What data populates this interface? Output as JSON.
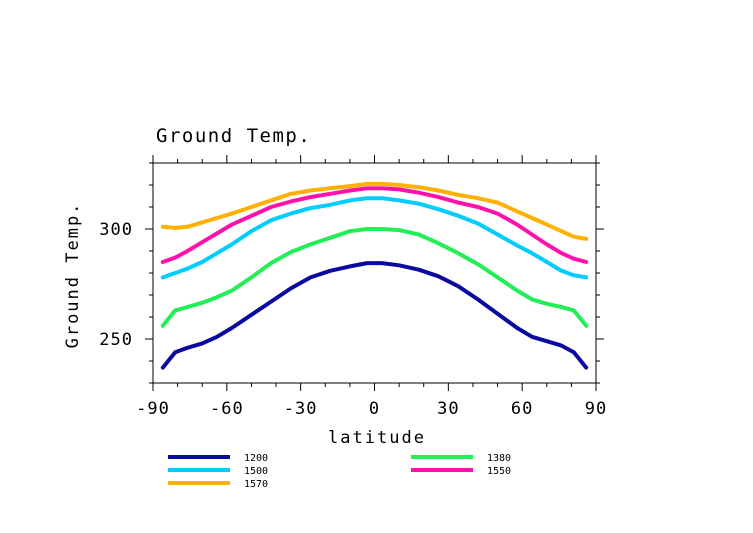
{
  "chart_data": {
    "type": "line",
    "title": "Ground Temp.",
    "xlabel": "latitude",
    "ylabel": "Ground Temp.",
    "xlim": [
      -90,
      90
    ],
    "ylim": [
      230,
      330
    ],
    "xticks": [
      -90,
      -60,
      -30,
      0,
      30,
      60,
      90
    ],
    "yticks": [
      250,
      300
    ],
    "grid": false,
    "legend_position": "bottom",
    "x": [
      -86,
      -81,
      -76,
      -70,
      -64,
      -58,
      -50,
      -42,
      -34,
      -26,
      -18,
      -10,
      -3,
      3,
      10,
      18,
      26,
      34,
      42,
      50,
      58,
      64,
      70,
      76,
      81,
      86
    ],
    "series": [
      {
        "name": "1200",
        "color": "#0a0aa0",
        "values": [
          237,
          244,
          246,
          248,
          251,
          255,
          261,
          267,
          273,
          278,
          281,
          283,
          284.5,
          284.5,
          283.5,
          281.5,
          278.5,
          274,
          268,
          261.5,
          255,
          251,
          249,
          247,
          244,
          237
        ]
      },
      {
        "name": "1500",
        "color": "#00ccff",
        "values": [
          278,
          280,
          282,
          285,
          289,
          293,
          299,
          304,
          307,
          309.5,
          311,
          313,
          314,
          314,
          313,
          311.5,
          309,
          306,
          302.5,
          297.5,
          292.5,
          289,
          285,
          281,
          279,
          278
        ]
      },
      {
        "name": "1570",
        "color": "#ffb000",
        "values": [
          301,
          300.5,
          301,
          303,
          305,
          307,
          310,
          313,
          316,
          317.5,
          318.5,
          319.5,
          320.5,
          320.5,
          320,
          319,
          317.5,
          315.5,
          314,
          312,
          308,
          305,
          302,
          299,
          296.5,
          295.5
        ]
      },
      {
        "name": "1380",
        "color": "#22ee55",
        "values": [
          256,
          263,
          264.5,
          266.5,
          269,
          272,
          278,
          284.5,
          289.5,
          293,
          296,
          299,
          300,
          300,
          299.5,
          297.5,
          293.5,
          289,
          284,
          278,
          272,
          268,
          266,
          264.5,
          263,
          256
        ]
      },
      {
        "name": "1550",
        "color": "#ff11aa",
        "values": [
          285,
          287,
          290,
          294,
          298,
          302,
          306,
          310,
          312.5,
          314.5,
          316,
          317.5,
          318.5,
          318.5,
          318,
          316.5,
          314.5,
          312,
          310,
          307,
          302,
          297.5,
          293,
          289,
          286.5,
          285
        ]
      }
    ]
  }
}
